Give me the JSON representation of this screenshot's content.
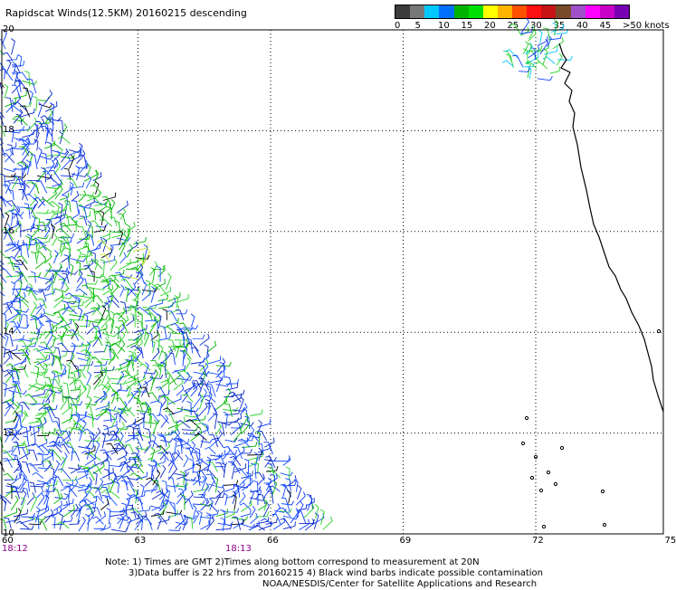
{
  "title": "Rapidscat Winds(12.5KM) 20160215 descending",
  "legend": {
    "colors": [
      "#3c3c3c",
      "#787878",
      "#00c8ff",
      "#0070ff",
      "#00b400",
      "#00e000",
      "#ffff00",
      "#ffb400",
      "#ff5000",
      "#ff1010",
      "#c81414",
      "#7a4b2a",
      "#a050c8",
      "#ff00ff",
      "#c800c8",
      "#7800b4"
    ],
    "labels": [
      "0",
      "5",
      "10",
      "15",
      "20",
      "25",
      "30",
      "35",
      "40",
      "45",
      ">50 knots"
    ]
  },
  "map": {
    "lat_labels": [
      "20",
      "18",
      "16",
      "14",
      "12",
      "10"
    ],
    "lon_labels": [
      "60",
      "63",
      "66",
      "69",
      "72",
      "75"
    ],
    "times": [
      "18:12",
      "18:13"
    ]
  },
  "note": {
    "line1": "Note: 1) Times are GMT 2)Times along bottom correspond to measurement at 20N",
    "line2": "3)Data buffer is 22 hrs from 20160215 4) Black wind barbs indicate possible contamination",
    "line3": "NOAA/NESDIS/Center for Satellite Applications and Research"
  }
}
